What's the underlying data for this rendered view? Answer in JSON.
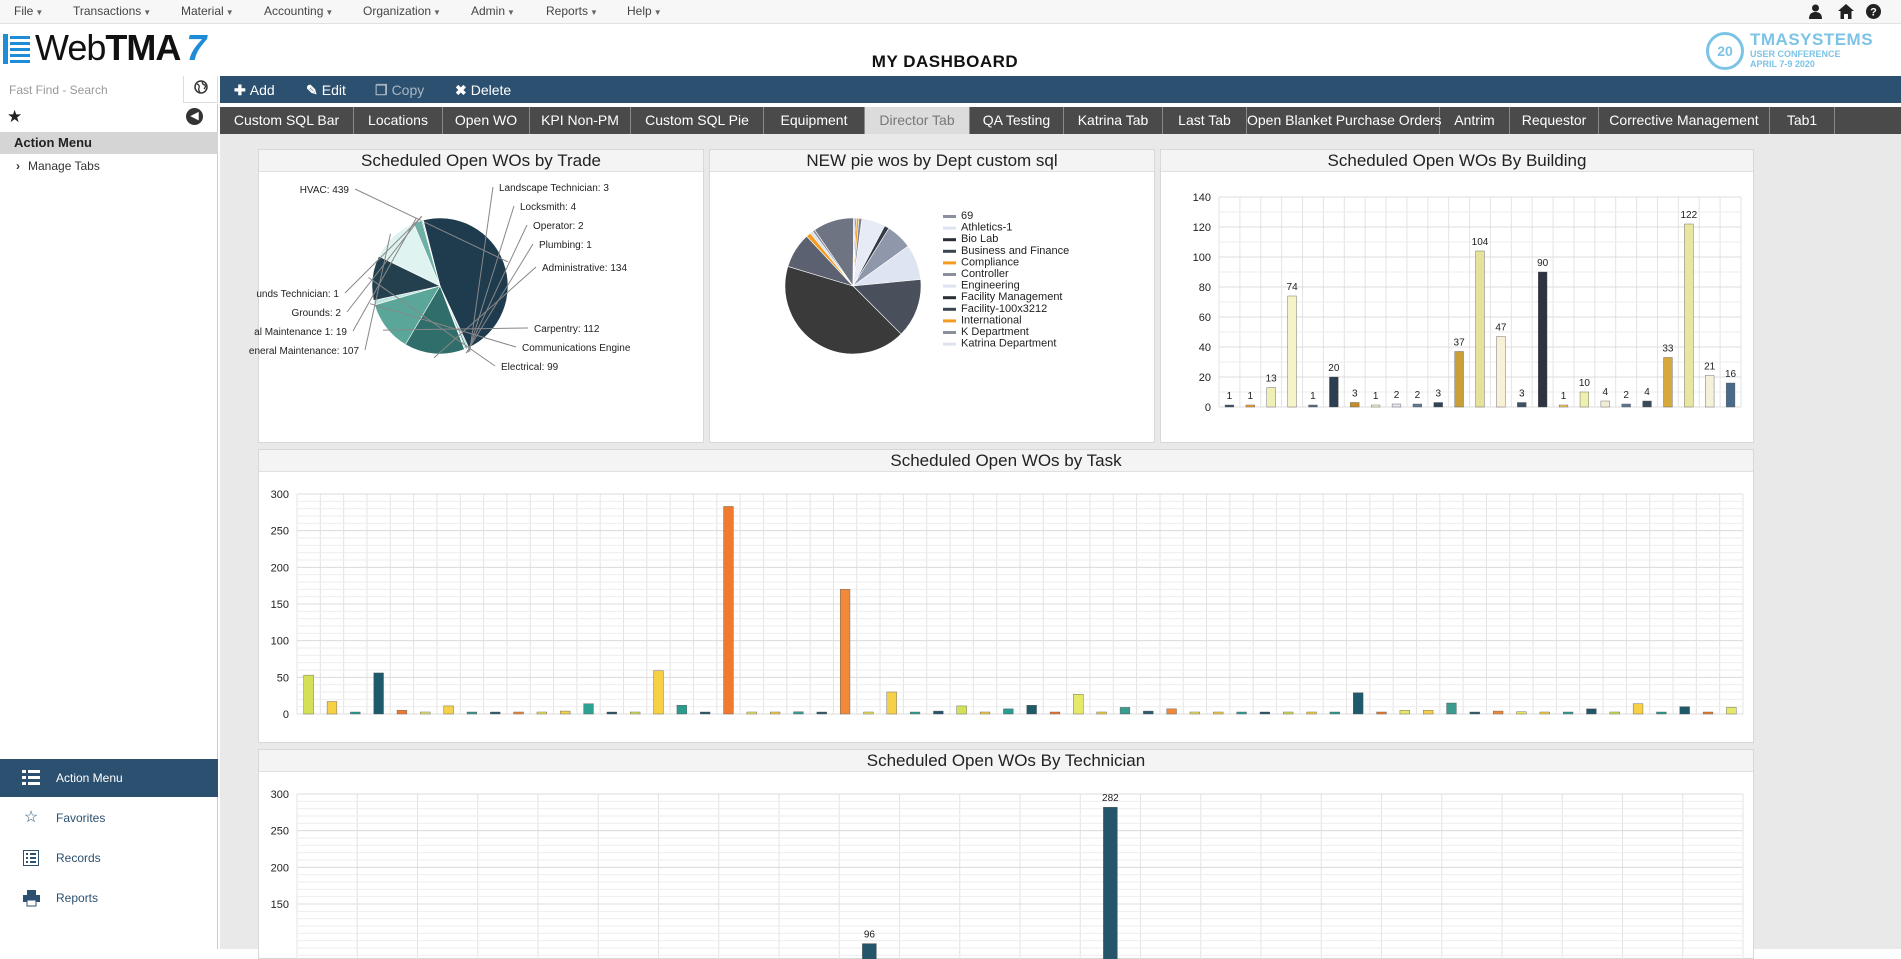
{
  "menu": [
    {
      "label": "File"
    },
    {
      "label": "Transactions"
    },
    {
      "label": "Material"
    },
    {
      "label": "Accounting"
    },
    {
      "label": "Organization"
    },
    {
      "label": "Admin"
    },
    {
      "label": "Reports"
    },
    {
      "label": "Help"
    }
  ],
  "top_icons": [
    "user-icon",
    "home-icon",
    "help-icon"
  ],
  "logo": {
    "text_web": "Web",
    "text_tma": "TMA",
    "version": "7"
  },
  "page_title": "MY DASHBOARD",
  "conference": {
    "line1": "TMASYSTEMS",
    "line2": "USER CONFERENCE",
    "line3": "APRIL 7-9 2020",
    "seal": "20"
  },
  "fast_find": {
    "placeholder": "Fast Find - Search",
    "value": ""
  },
  "toolbar": {
    "add": "Add",
    "edit": "Edit",
    "copy": "Copy",
    "delete": "Delete"
  },
  "sidebar": {
    "section_title": "Action Menu",
    "tree_item": "Manage Tabs",
    "nav": [
      {
        "label": "Action Menu",
        "icon": "grid-icon",
        "active": true
      },
      {
        "label": "Favorites",
        "icon": "star-icon",
        "active": false
      },
      {
        "label": "Records",
        "icon": "list-icon",
        "active": false
      },
      {
        "label": "Reports",
        "icon": "printer-icon",
        "active": false
      }
    ]
  },
  "tabs": [
    {
      "label": "Custom SQL Bar"
    },
    {
      "label": "Locations"
    },
    {
      "label": "Open WO"
    },
    {
      "label": "KPI Non-PM"
    },
    {
      "label": "Custom SQL Pie"
    },
    {
      "label": "Equipment"
    },
    {
      "label": "Director Tab",
      "active": true
    },
    {
      "label": "QA Testing"
    },
    {
      "label": "Katrina Tab"
    },
    {
      "label": "Last Tab"
    },
    {
      "label": "Open Blanket Purchase Orders"
    },
    {
      "label": "Antrim"
    },
    {
      "label": "Requestor"
    },
    {
      "label": "Corrective Management"
    },
    {
      "label": "Tab1"
    }
  ],
  "colors": {
    "brand": "#2c5070",
    "tab_bg": "#4a4a4a",
    "accent_blue": "#1e8cd6"
  },
  "chart_data": [
    {
      "type": "pie",
      "title": "Scheduled Open WOs by Trade",
      "slices": [
        {
          "label": "HVAC: 439",
          "value": 439
        },
        {
          "label": "Landscape Technician: 3",
          "value": 3
        },
        {
          "label": "Locksmith: 4",
          "value": 4
        },
        {
          "label": "Operator: 2",
          "value": 2
        },
        {
          "label": "Plumbing: 1",
          "value": 1
        },
        {
          "label": "Administrative: 134",
          "value": 134
        },
        {
          "label": "Carpentry: 112",
          "value": 112
        },
        {
          "label": "Communications Engine",
          "value": 10
        },
        {
          "label": "Electrical: 99",
          "value": 99
        },
        {
          "label": "eneral Maintenance: 107",
          "value": 107
        },
        {
          "label": "al Maintenance 1: 19",
          "value": 19
        },
        {
          "label": "Grounds: 2",
          "value": 2
        },
        {
          "label": "unds Technician: 1",
          "value": 1
        }
      ]
    },
    {
      "type": "pie",
      "title": "NEW pie wos by Dept custom sql",
      "legend_position": "right",
      "legend": [
        "69",
        "Athletics-1",
        "Bio Lab",
        "Business and Finance",
        "Compliance",
        "Controller",
        "Engineering",
        "Facility Management",
        "Facility-100x3212",
        "International",
        "K Department",
        "Katrina Department"
      ],
      "slices": [
        {
          "value": 69
        },
        {
          "value": 3
        },
        {
          "value": 2
        },
        {
          "value": 4
        },
        {
          "value": 5
        },
        {
          "value": 40
        },
        {
          "value": 8
        },
        {
          "value": 44
        },
        {
          "value": 60
        },
        {
          "value": 100
        },
        {
          "value": 300
        },
        {
          "value": 60
        },
        {
          "value": 8
        },
        {
          "value": 5
        },
        {
          "value": 4
        }
      ]
    },
    {
      "type": "bar",
      "title": "Scheduled Open WOs By Building",
      "ylim": [
        0,
        140
      ],
      "yticks": [
        0,
        20,
        40,
        60,
        80,
        100,
        120,
        140
      ],
      "grid": true,
      "values": [
        1,
        1,
        13,
        74,
        1,
        20,
        3,
        1,
        2,
        2,
        3,
        37,
        104,
        47,
        3,
        90,
        1,
        10,
        4,
        2,
        4,
        33,
        122,
        21,
        16
      ]
    },
    {
      "type": "bar",
      "title": "Scheduled Open WOs by Task",
      "ylim": [
        0,
        300
      ],
      "yticks": [
        0,
        50,
        100,
        150,
        200,
        250,
        300
      ],
      "grid": true,
      "values": [
        53,
        17,
        2,
        56,
        5,
        2,
        11,
        2,
        2,
        2,
        2,
        4,
        14,
        2,
        2,
        59,
        12,
        2,
        283,
        2,
        2,
        3,
        2,
        170,
        2,
        30,
        2,
        4,
        11,
        2,
        7,
        12,
        2,
        27,
        2,
        9,
        4,
        7,
        2,
        2,
        2,
        2,
        2,
        2,
        2,
        29,
        2,
        5,
        5,
        15,
        2,
        4,
        3,
        2,
        2,
        7,
        2,
        14,
        2,
        10,
        2,
        9
      ]
    },
    {
      "type": "bar",
      "title": "Scheduled Open WOs By Technician",
      "ylim": [
        0,
        300
      ],
      "yticks": [
        150,
        200,
        250,
        300
      ],
      "grid": true,
      "values": [
        96,
        282
      ],
      "labels": [
        "96",
        "282"
      ]
    }
  ]
}
